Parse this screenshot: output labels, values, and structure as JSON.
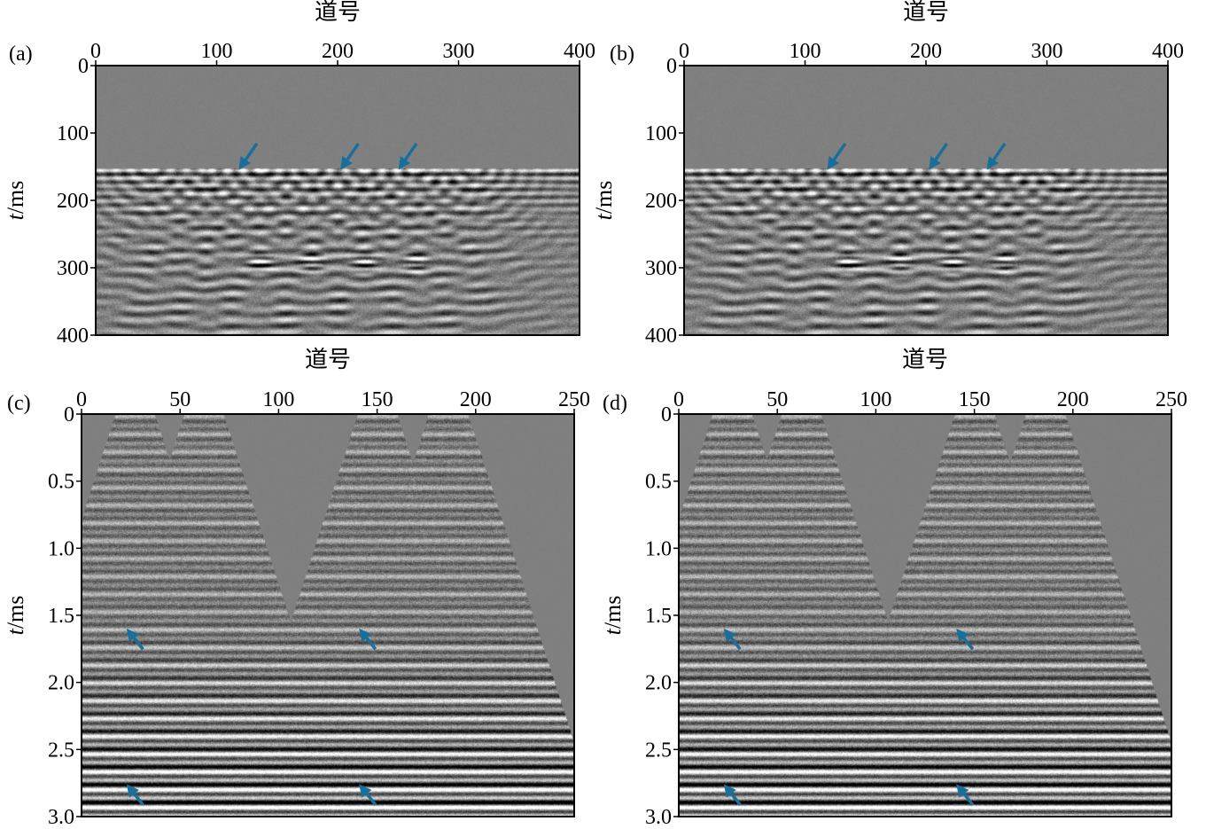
{
  "figure": {
    "colors": {
      "background": "#ffffff",
      "seismic_bg": "#808080",
      "arrow": "#1a6e9a",
      "axis": "#000000"
    }
  },
  "chart_data": [
    {
      "type": "heatmap",
      "panel_label": "(a)",
      "xlabel": "道号",
      "ylabel_italic": "t",
      "ylabel_unit": "/ms",
      "xlim": [
        0,
        400
      ],
      "ylim": [
        0,
        400
      ],
      "x_ticks": [
        "0",
        "100",
        "200",
        "300",
        "400"
      ],
      "x_tick_values": [
        0,
        100,
        200,
        300,
        400
      ],
      "y_ticks": [
        "0",
        "100",
        "200",
        "300",
        "400"
      ],
      "y_tick_values": [
        0,
        100,
        200,
        300,
        400
      ],
      "x_axis_position": "top",
      "y_inverted": true,
      "colormap": "gray",
      "pattern": "ground",
      "first_arrival_time": 152,
      "hyperbola_apexes": [
        137,
        178,
        222,
        264,
        92,
        312,
        45
      ],
      "annotations": [
        {
          "type": "arrow",
          "x": 120,
          "y": 150,
          "direction": "down-left"
        },
        {
          "type": "arrow",
          "x": 204,
          "y": 150,
          "direction": "down-left"
        },
        {
          "type": "arrow",
          "x": 252,
          "y": 150,
          "direction": "down-left"
        }
      ]
    },
    {
      "type": "heatmap",
      "panel_label": "(b)",
      "xlabel": "道号",
      "ylabel_italic": "t",
      "ylabel_unit": "/ms",
      "xlim": [
        0,
        400
      ],
      "ylim": [
        0,
        400
      ],
      "x_ticks": [
        "0",
        "100",
        "200",
        "300",
        "400"
      ],
      "x_tick_values": [
        0,
        100,
        200,
        300,
        400
      ],
      "y_ticks": [
        "0",
        "100",
        "200",
        "300",
        "400"
      ],
      "y_tick_values": [
        0,
        100,
        200,
        300,
        400
      ],
      "x_axis_position": "top",
      "y_inverted": true,
      "colormap": "gray",
      "pattern": "ground",
      "first_arrival_time": 152,
      "hyperbola_apexes": [
        137,
        178,
        222,
        264,
        92,
        312,
        45
      ],
      "annotations": [
        {
          "type": "arrow",
          "x": 120,
          "y": 150,
          "direction": "down-left"
        },
        {
          "type": "arrow",
          "x": 204,
          "y": 150,
          "direction": "down-left"
        },
        {
          "type": "arrow",
          "x": 252,
          "y": 150,
          "direction": "down-left"
        }
      ]
    },
    {
      "type": "heatmap",
      "panel_label": "(c)",
      "xlabel": "道号",
      "ylabel_italic": "t",
      "ylabel_unit": "/ms",
      "xlim": [
        0,
        250
      ],
      "ylim": [
        0,
        3.0
      ],
      "x_ticks": [
        "0",
        "50",
        "100",
        "150",
        "200",
        "250"
      ],
      "x_tick_values": [
        0,
        50,
        100,
        150,
        200,
        250
      ],
      "y_ticks": [
        "0",
        "0.5",
        "1.0",
        "1.5",
        "2.0",
        "2.5",
        "3.0"
      ],
      "y_tick_values": [
        0,
        0.5,
        1.0,
        1.5,
        2.0,
        2.5,
        3.0
      ],
      "x_axis_position": "top",
      "y_inverted": true,
      "colormap": "gray",
      "pattern": "gathers",
      "gather_centers": [
        27,
        62,
        150,
        186
      ],
      "annotations": [
        {
          "type": "arrow",
          "x": 24,
          "y": 1.62,
          "direction": "up-left"
        },
        {
          "type": "arrow",
          "x": 24,
          "y": 2.78,
          "direction": "up-left"
        },
        {
          "type": "arrow",
          "x": 142,
          "y": 1.62,
          "direction": "up-left"
        },
        {
          "type": "arrow",
          "x": 142,
          "y": 2.78,
          "direction": "up-left"
        }
      ]
    },
    {
      "type": "heatmap",
      "panel_label": "(d)",
      "xlabel": "道号",
      "ylabel_italic": "t",
      "ylabel_unit": "/ms",
      "xlim": [
        0,
        250
      ],
      "ylim": [
        0,
        3.0
      ],
      "x_ticks": [
        "0",
        "50",
        "100",
        "150",
        "200",
        "250"
      ],
      "x_tick_values": [
        0,
        50,
        100,
        150,
        200,
        250
      ],
      "y_ticks": [
        "0",
        "0.5",
        "1.0",
        "1.5",
        "2.0",
        "2.5",
        "3.0"
      ],
      "y_tick_values": [
        0,
        0.5,
        1.0,
        1.5,
        2.0,
        2.5,
        3.0
      ],
      "x_axis_position": "top",
      "y_inverted": true,
      "colormap": "gray",
      "pattern": "gathers",
      "gather_centers": [
        27,
        62,
        150,
        186
      ],
      "annotations": [
        {
          "type": "arrow",
          "x": 24,
          "y": 1.62,
          "direction": "up-left"
        },
        {
          "type": "arrow",
          "x": 24,
          "y": 2.78,
          "direction": "up-left"
        },
        {
          "type": "arrow",
          "x": 142,
          "y": 1.62,
          "direction": "up-left"
        },
        {
          "type": "arrow",
          "x": 142,
          "y": 2.78,
          "direction": "up-left"
        }
      ]
    }
  ]
}
